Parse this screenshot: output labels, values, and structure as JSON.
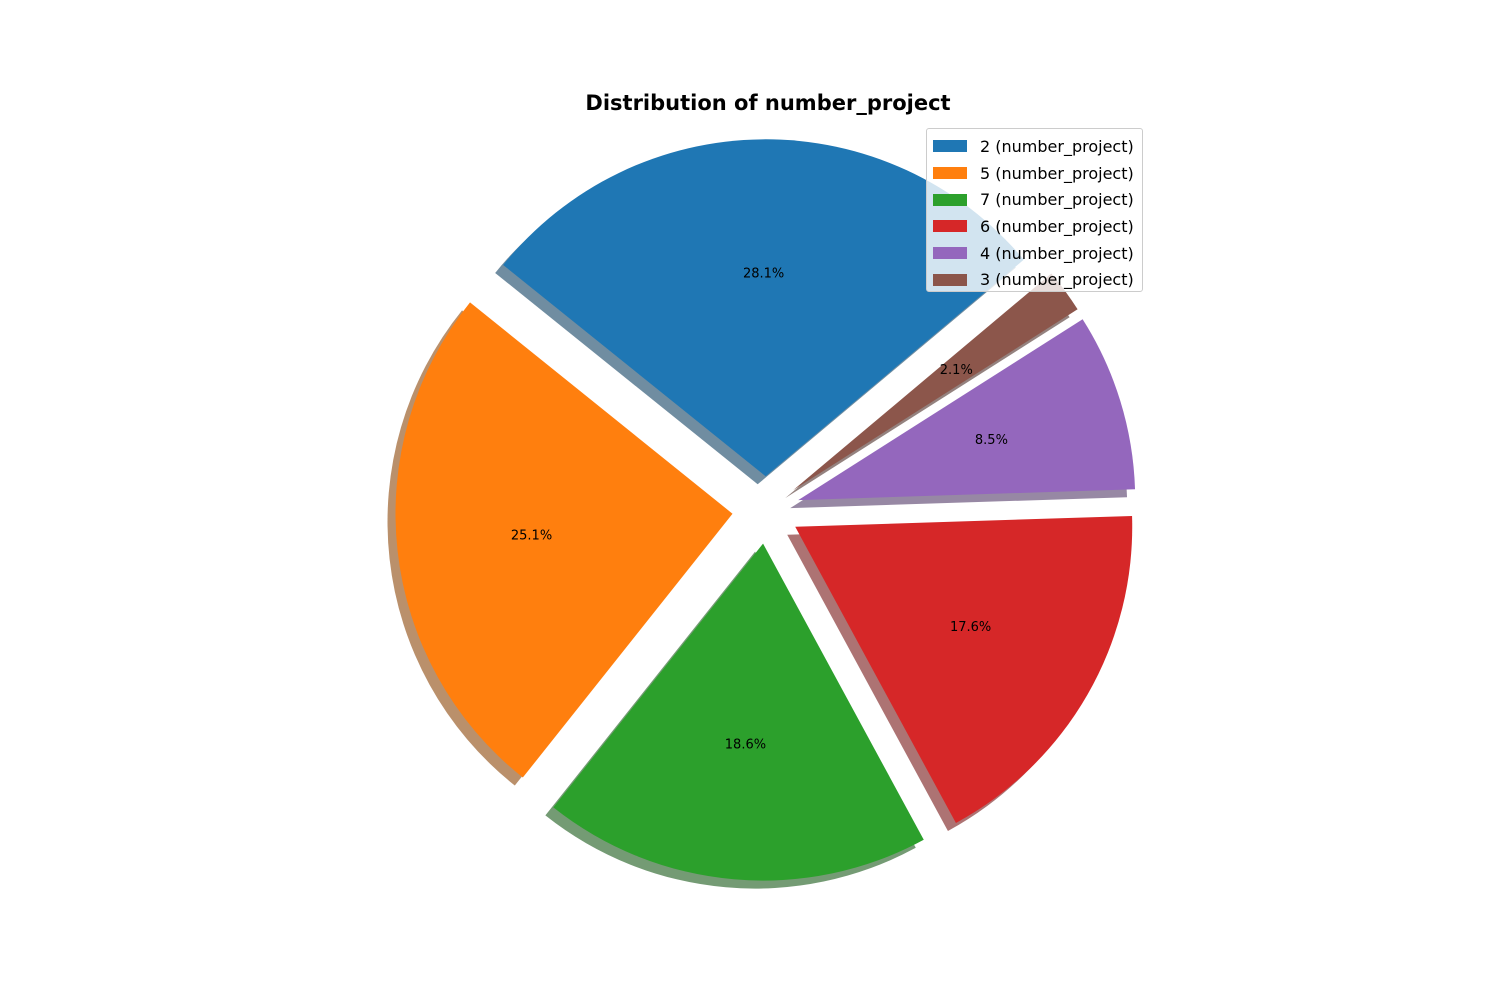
{
  "chart_data": {
    "type": "pie",
    "title": "Distribution of number_project",
    "labels": [
      "2 (number_project)",
      "5 (number_project)",
      "7 (number_project)",
      "6 (number_project)",
      "4 (number_project)",
      "3 (number_project)"
    ],
    "values": [
      28.1,
      25.1,
      18.6,
      17.6,
      8.5,
      2.1
    ],
    "percent_labels": [
      "28.1%",
      "25.1%",
      "18.6%",
      "17.6%",
      "8.5%",
      "2.1%"
    ],
    "colors": [
      "#1f77b4",
      "#ff7f0e",
      "#2ca02c",
      "#d62728",
      "#9467bd",
      "#8c564b"
    ],
    "start_angle_deg": 40,
    "direction": "counterclockwise",
    "exploded": true,
    "shadow": true,
    "legend_position": "top-right"
  }
}
